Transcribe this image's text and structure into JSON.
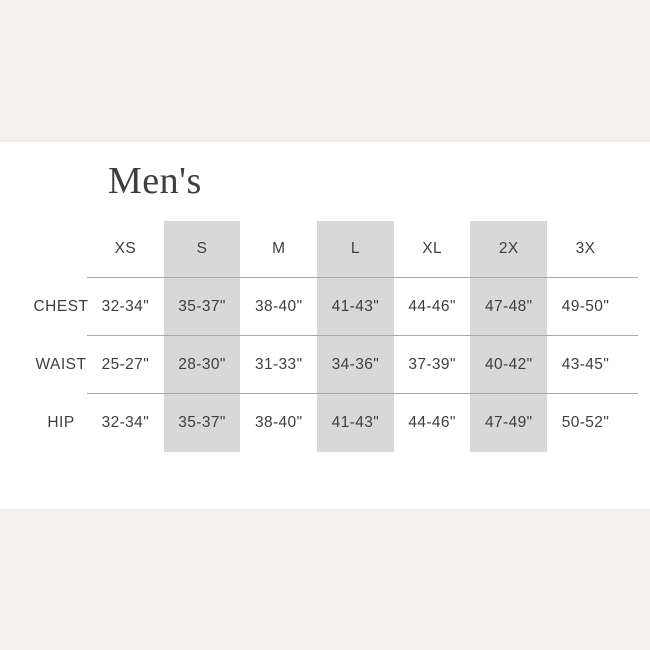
{
  "page": {
    "title": "Men's"
  },
  "size_chart": {
    "columns": [
      "XS",
      "S",
      "M",
      "L",
      "XL",
      "2X",
      "3X"
    ],
    "highlighted_columns": [
      "S",
      "L",
      "2X"
    ],
    "rows": [
      {
        "label": "CHEST",
        "values": [
          "32-34\"",
          "35-37\"",
          "38-40\"",
          "41-43\"",
          "44-46\"",
          "47-48\"",
          "49-50\""
        ]
      },
      {
        "label": "WAIST",
        "values": [
          "25-27\"",
          "28-30\"",
          "31-33\"",
          "34-36\"",
          "37-39\"",
          "40-42\"",
          "43-45\""
        ]
      },
      {
        "label": "HIP",
        "values": [
          "32-34\"",
          "35-37\"",
          "38-40\"",
          "41-43\"",
          "44-46\"",
          "47-49\"",
          "50-52\""
        ]
      }
    ]
  },
  "colors": {
    "band": "#f2f1ef",
    "content_bg": "#ffffff",
    "highlight_column": "#d8d8d8",
    "text": "#3e3e3e",
    "line": "#a9a9a9"
  }
}
